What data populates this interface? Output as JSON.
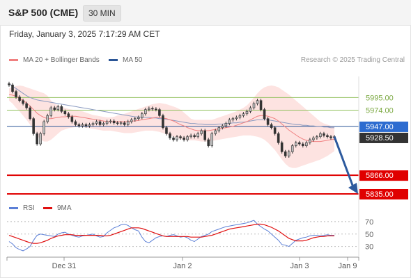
{
  "header": {
    "title": "S&P 500 (CME)",
    "timeframe": "30 MIN"
  },
  "timestamp": "Friday, January 3, 2025 7:17:29 AM CET",
  "legend_main": [
    {
      "label": "MA 20 + Bollinger Bands",
      "color": "#f08080"
    },
    {
      "label": "MA 50",
      "color": "#2a5596"
    }
  ],
  "copyright": "Research © 2025 Trading Central",
  "legend_rsi": [
    {
      "label": "RSI",
      "color": "#5b7fd6"
    },
    {
      "label": "9MA",
      "color": "#e01010"
    }
  ],
  "colors": {
    "up_candle": "#bfbfbf",
    "down_candle": "#333333",
    "bollinger_fill": "#fde3e1",
    "ma20": "#f08080",
    "ma50": "#2a5596",
    "resistance": "#8fbf5a",
    "support": "#e00000",
    "current_price_box": "#333333",
    "arrow": "#2d5a9e"
  },
  "chart_data": [
    {
      "type": "candlestick",
      "ylim": [
        5820,
        6030
      ],
      "x_ticks": [
        "Dec 31",
        "Jan 2",
        "Jan 3",
        "Jan 9"
      ],
      "levels": [
        {
          "value": 5995.0,
          "label": "5995.00",
          "kind": "resistance"
        },
        {
          "value": 5974.0,
          "label": "5974.00",
          "kind": "resistance"
        },
        {
          "value": 5947.0,
          "label": "5947.00",
          "kind": "pivot"
        },
        {
          "value": 5866.0,
          "label": "5866.00",
          "kind": "support"
        },
        {
          "value": 5835.0,
          "label": "5835.00",
          "kind": "support"
        }
      ],
      "current_price": {
        "value": 5928.5,
        "label": "5928.50"
      },
      "close": [
        6016,
        6005,
        5996,
        5990,
        5985,
        5978,
        5960,
        5935,
        5918,
        5935,
        5955,
        5965,
        5978,
        5975,
        5980,
        5972,
        5968,
        5963,
        5955,
        5950,
        5948,
        5950,
        5948,
        5950,
        5952,
        5955,
        5950,
        5952,
        5955,
        5956,
        5953,
        5952,
        5953,
        5950,
        5955,
        5958,
        5960,
        5962,
        5968,
        5975,
        5977,
        5976,
        5975,
        5965,
        5945,
        5935,
        5928,
        5925,
        5930,
        5928,
        5925,
        5930,
        5932,
        5930,
        5935,
        5940,
        5925,
        5915,
        5935,
        5940,
        5945,
        5948,
        5952,
        5958,
        5960,
        5962,
        5965,
        5968,
        5972,
        5978,
        5985,
        5990,
        5975,
        5960,
        5950,
        5945,
        5935,
        5920,
        5905,
        5898,
        5905,
        5915,
        5920,
        5918,
        5915,
        5920,
        5925,
        5928,
        5930,
        5935,
        5932,
        5930,
        5928,
        5930
      ],
      "ma20": [
        6000,
        5999,
        5997,
        5994,
        5990,
        5986,
        5981,
        5975,
        5969,
        5965,
        5962,
        5960,
        5960,
        5961,
        5962,
        5963,
        5963,
        5964,
        5964,
        5964,
        5963,
        5962,
        5961,
        5960,
        5959,
        5958,
        5957,
        5956,
        5955,
        5955,
        5955,
        5955,
        5955,
        5955,
        5955,
        5956,
        5956,
        5957,
        5958,
        5959,
        5960,
        5961,
        5962,
        5962,
        5961,
        5960,
        5958,
        5956,
        5953,
        5950,
        5948,
        5945,
        5943,
        5941,
        5940,
        5940,
        5940,
        5940,
        5941,
        5942,
        5943,
        5944,
        5945,
        5946,
        5947,
        5949,
        5951,
        5953,
        5955,
        5958,
        5961,
        5964,
        5965,
        5965,
        5964,
        5962,
        5960,
        5956,
        5951,
        5946,
        5941,
        5937,
        5933,
        5929,
        5926,
        5924,
        5923,
        5922,
        5922,
        5922,
        5923,
        5924,
        5925,
        5926
      ],
      "bb_upper": [
        6010,
        6012,
        6014,
        6015,
        6014,
        6012,
        6010,
        6008,
        6006,
        6004,
        6002,
        5998,
        5990,
        5985,
        5982,
        5980,
        5978,
        5976,
        5975,
        5974,
        5973,
        5972,
        5970,
        5968,
        5966,
        5965,
        5964,
        5963,
        5962,
        5962,
        5963,
        5965,
        5966,
        5968,
        5970,
        5972,
        5974,
        5976,
        5978,
        5980,
        5982,
        5984,
        5985,
        5986,
        5985,
        5984,
        5982,
        5980,
        5978,
        5975,
        5970,
        5965,
        5960,
        5958,
        5958,
        5958,
        5958,
        5958,
        5958,
        5960,
        5962,
        5964,
        5966,
        5968,
        5970,
        5972,
        5975,
        5978,
        5982,
        5988,
        5995,
        6002,
        6008,
        6012,
        6014,
        6015,
        6014,
        6012,
        6008,
        6004,
        6000,
        5995,
        5990,
        5985,
        5980,
        5975,
        5970,
        5965,
        5960,
        5955,
        5952,
        5950,
        5948,
        5946
      ],
      "bb_lower": [
        5990,
        5985,
        5978,
        5972,
        5965,
        5958,
        5950,
        5940,
        5932,
        5925,
        5922,
        5922,
        5925,
        5930,
        5935,
        5940,
        5942,
        5944,
        5945,
        5946,
        5946,
        5946,
        5945,
        5944,
        5943,
        5942,
        5941,
        5940,
        5940,
        5940,
        5939,
        5938,
        5937,
        5936,
        5936,
        5936,
        5937,
        5938,
        5939,
        5940,
        5940,
        5940,
        5939,
        5938,
        5936,
        5934,
        5932,
        5930,
        5928,
        5926,
        5925,
        5924,
        5924,
        5924,
        5923,
        5922,
        5922,
        5922,
        5923,
        5924,
        5925,
        5926,
        5927,
        5928,
        5929,
        5930,
        5931,
        5932,
        5932,
        5932,
        5931,
        5930,
        5928,
        5925,
        5920,
        5914,
        5908,
        5900,
        5892,
        5885,
        5880,
        5878,
        5878,
        5880,
        5882,
        5884,
        5886,
        5888,
        5890,
        5892,
        5895,
        5898,
        5902,
        5906
      ],
      "ma50": [
        6018,
        6014,
        6010,
        6006,
        6002,
        5998,
        5995,
        5993,
        5991,
        5990,
        5989,
        5988,
        5987,
        5986,
        5985,
        5984,
        5983,
        5982,
        5981,
        5980,
        5979,
        5978,
        5977,
        5976,
        5975,
        5974,
        5973,
        5972,
        5971,
        5970,
        5969,
        5968,
        5967,
        5966,
        5965,
        5964,
        5963,
        5963,
        5962,
        5962,
        5962,
        5961,
        5961,
        5960,
        5960,
        5959,
        5958,
        5957,
        5956,
        5955,
        5954,
        5953,
        5952,
        5952,
        5951,
        5951,
        5950,
        5950,
        5950,
        5950,
        5951,
        5951,
        5952,
        5952,
        5953,
        5953,
        5954,
        5954,
        5955,
        5956,
        5957,
        5958,
        5958,
        5958,
        5958,
        5957,
        5956,
        5955,
        5954,
        5953,
        5952,
        5951,
        5950,
        5950,
        5949,
        5949,
        5948,
        5948,
        5947,
        5947,
        5946,
        5946,
        5945,
        5945
      ],
      "projection": {
        "from": 5930,
        "to": 5835
      }
    },
    {
      "type": "line",
      "name": "RSI",
      "ylim": [
        15,
        80
      ],
      "y_ticks": [
        70,
        50,
        30
      ],
      "series": [
        {
          "name": "RSI",
          "values": [
            38,
            34,
            28,
            25,
            23,
            26,
            30,
            40,
            48,
            50,
            49,
            48,
            47,
            46,
            50,
            52,
            53,
            50,
            48,
            46,
            45,
            47,
            48,
            49,
            50,
            47,
            45,
            46,
            52,
            56,
            60,
            62,
            65,
            66,
            64,
            60,
            57,
            55,
            45,
            38,
            36,
            40,
            44,
            46,
            47,
            46,
            48,
            49,
            47,
            45,
            46,
            44,
            40,
            38,
            42,
            46,
            48,
            50,
            54,
            56,
            58,
            60,
            62,
            63,
            64,
            65,
            66,
            67,
            68,
            70,
            72,
            66,
            62,
            58,
            55,
            50,
            45,
            40,
            33,
            32,
            30,
            35,
            40,
            42,
            44,
            45,
            47,
            48,
            48,
            47,
            48,
            49,
            48,
            48
          ]
        },
        {
          "name": "9MA",
          "values": [
            48,
            46,
            44,
            42,
            40,
            38,
            36,
            35,
            35,
            36,
            38,
            40,
            43,
            45,
            47,
            48,
            49,
            49,
            49,
            48,
            48,
            48,
            48,
            48,
            48,
            48,
            48,
            47,
            47,
            48,
            50,
            52,
            54,
            56,
            58,
            60,
            60,
            60,
            59,
            57,
            55,
            53,
            51,
            49,
            47,
            46,
            46,
            46,
            46,
            46,
            46,
            46,
            45,
            45,
            45,
            45,
            46,
            47,
            48,
            50,
            52,
            54,
            56,
            58,
            59,
            60,
            61,
            62,
            63,
            64,
            65,
            66,
            66,
            65,
            63,
            61,
            58,
            55,
            51,
            47,
            43,
            41,
            39,
            39,
            39,
            40,
            42,
            44,
            45,
            46,
            46,
            47,
            47,
            47
          ]
        }
      ]
    }
  ]
}
